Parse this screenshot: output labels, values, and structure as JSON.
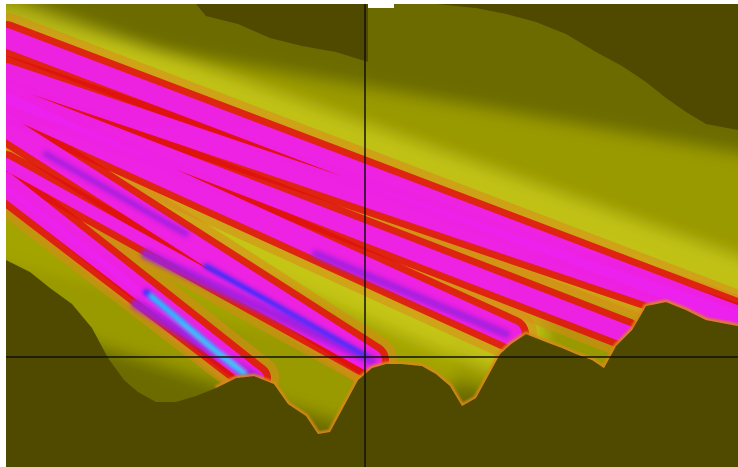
{
  "viewer": {
    "colors": {
      "background": "#4f4a00",
      "field_outer": "#6b6b00",
      "field_mid": "#a8a800",
      "field_light": "#d6d820",
      "halo": "#d98a1a",
      "red": "#e01010",
      "magenta": "#ee22ee",
      "violet": "#a020e0",
      "blue": "#2030ff",
      "cyan": "#00e8ff",
      "crosshair": "#101010",
      "top_marker": "#ffffff"
    },
    "crosshair": {
      "visible": true
    },
    "overlay_icon": "selection-marker-icon"
  }
}
